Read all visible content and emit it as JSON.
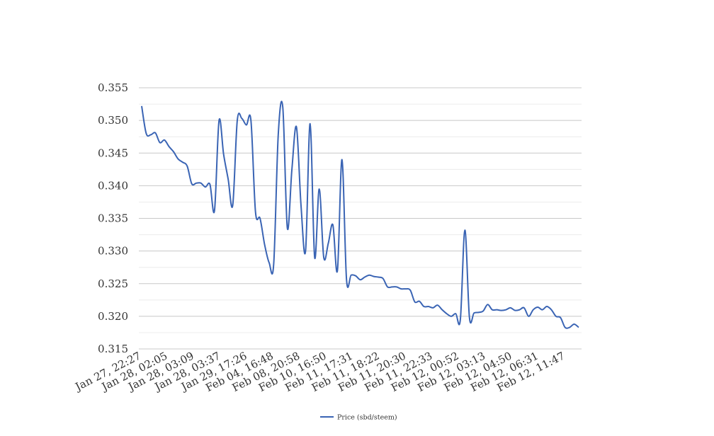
{
  "chart_data": {
    "type": "line",
    "title": "",
    "xlabel": "",
    "ylabel": "",
    "ylim": [
      0.315,
      0.355
    ],
    "y_ticks": [
      "0.315",
      "0.320",
      "0.325",
      "0.330",
      "0.335",
      "0.340",
      "0.345",
      "0.350",
      "0.355"
    ],
    "y_tick_values": [
      0.315,
      0.32,
      0.325,
      0.33,
      0.335,
      0.34,
      0.345,
      0.35,
      0.355
    ],
    "x_tick_labels": [
      "Jan 27, 22:27",
      "Jan 28, 02:05",
      "Jan 28, 03:09",
      "Jan 28, 03:37",
      "Jan 29, 17:26",
      "Feb 04, 16:48",
      "Feb 08, 20:58",
      "Feb 10, 16:50",
      "Feb 11, 17:31",
      "Feb 11, 18:22",
      "Feb 11, 20:30",
      "Feb 11, 22:33",
      "Feb 12, 00:52",
      "Feb 12, 03:13",
      "Feb 12, 04:50",
      "Feb 12, 06:31",
      "Feb 12, 11:47"
    ],
    "grid": true,
    "legend_position": "bottom",
    "series": [
      {
        "name": "Price (sbd/steem)",
        "color": "#3a64b4",
        "values": [
          0.3522,
          0.348,
          0.3478,
          0.3481,
          0.3466,
          0.347,
          0.346,
          0.3452,
          0.3441,
          0.3436,
          0.343,
          0.3403,
          0.3404,
          0.3404,
          0.3398,
          0.3402,
          0.3362,
          0.35,
          0.3448,
          0.341,
          0.337,
          0.35,
          0.3503,
          0.3493,
          0.35,
          0.336,
          0.335,
          0.331,
          0.3282,
          0.328,
          0.3478,
          0.352,
          0.3335,
          0.3425,
          0.349,
          0.337,
          0.33,
          0.3495,
          0.329,
          0.3395,
          0.329,
          0.3312,
          0.334,
          0.327,
          0.344,
          0.3256,
          0.3263,
          0.3262,
          0.3256,
          0.326,
          0.3263,
          0.3261,
          0.326,
          0.3258,
          0.3245,
          0.3245,
          0.3245,
          0.3242,
          0.3242,
          0.324,
          0.3222,
          0.3223,
          0.3215,
          0.3215,
          0.3213,
          0.3217,
          0.321,
          0.3204,
          0.32,
          0.3204,
          0.3195,
          0.3332,
          0.3198,
          0.3205,
          0.3206,
          0.3208,
          0.3218,
          0.321,
          0.321,
          0.3209,
          0.321,
          0.3213,
          0.3209,
          0.321,
          0.3213,
          0.32,
          0.321,
          0.3214,
          0.321,
          0.3215,
          0.321,
          0.32,
          0.3198,
          0.3183,
          0.3183,
          0.3188,
          0.3183
        ]
      }
    ]
  }
}
